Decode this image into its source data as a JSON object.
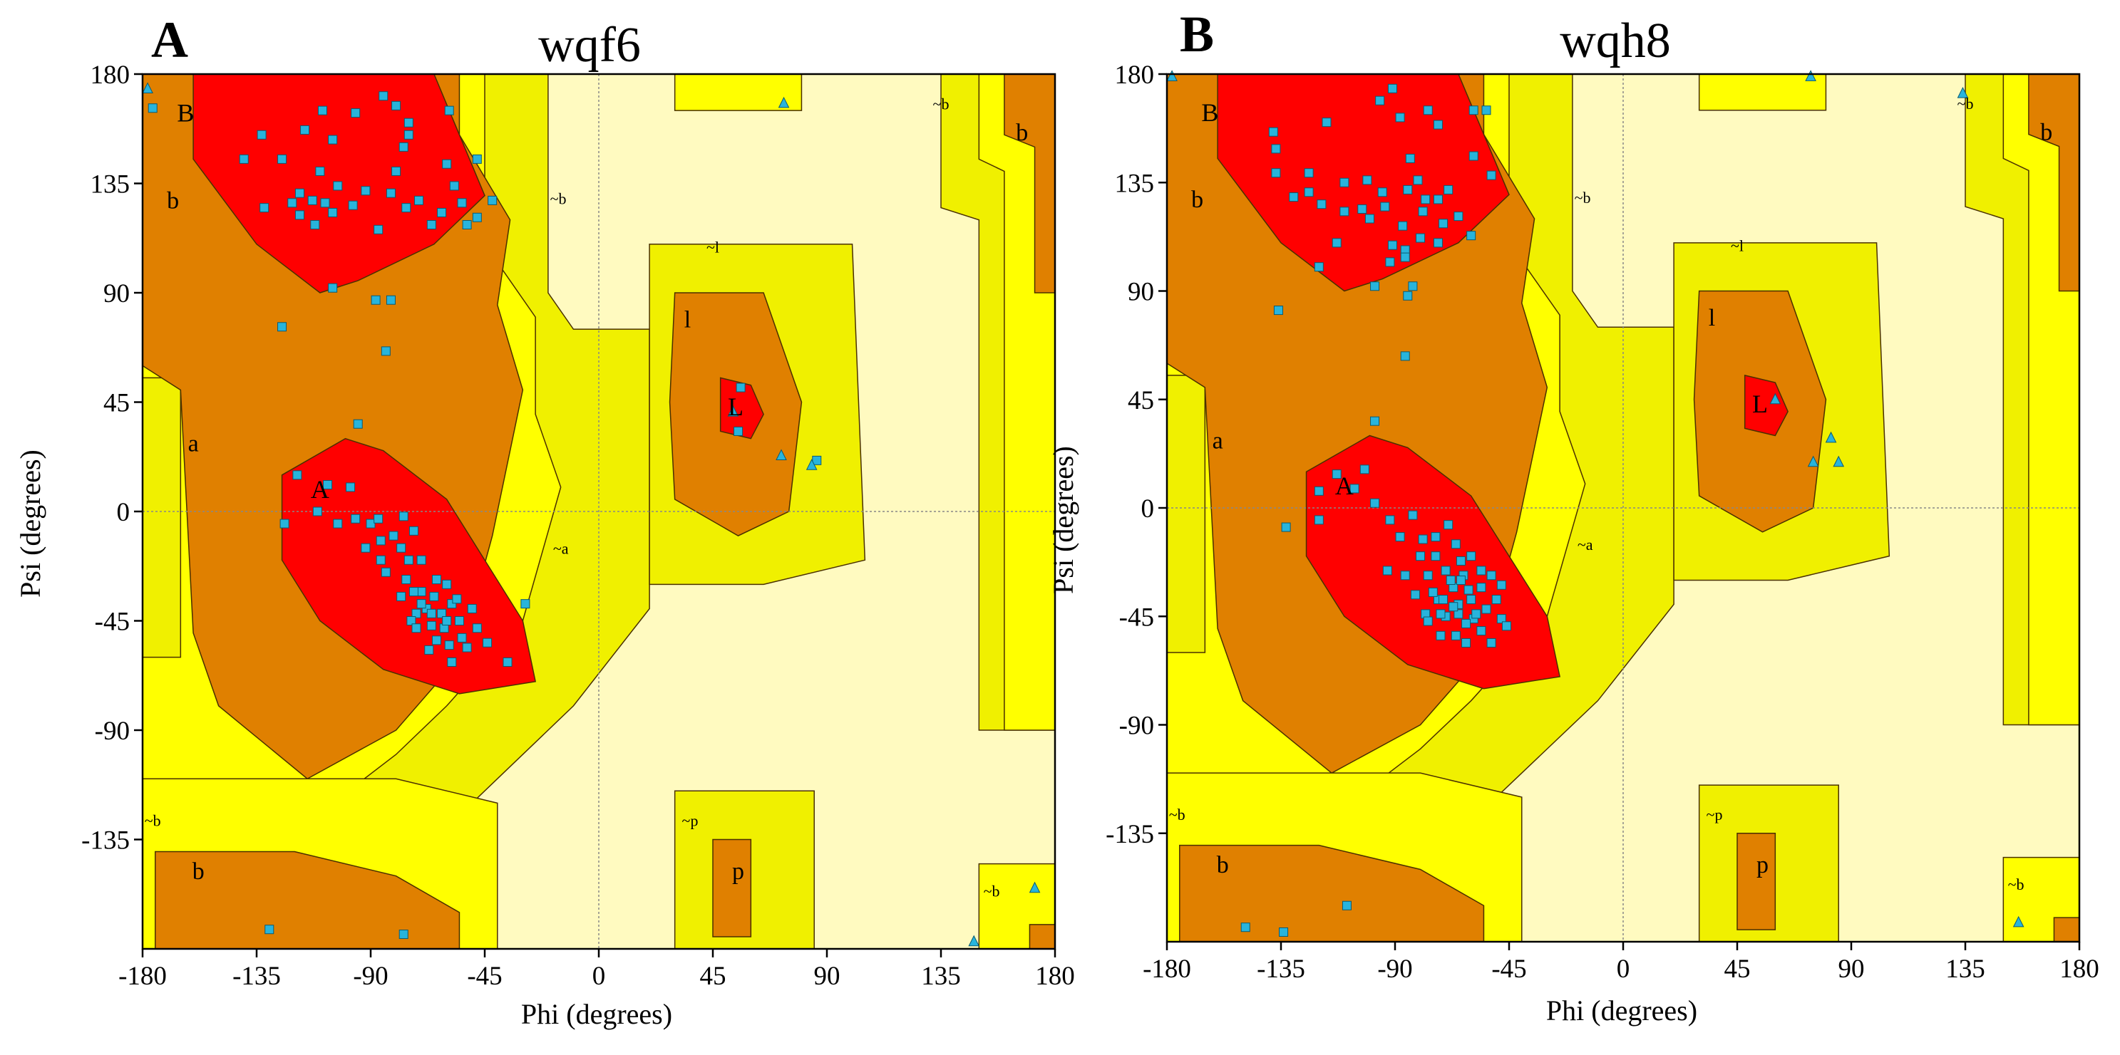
{
  "chart_data": [
    {
      "type": "scatter",
      "panel_label": "A",
      "title": "wqf6",
      "xlabel": "Phi (degrees)",
      "ylabel": "Psi (degrees)",
      "xlim": [
        -180,
        180
      ],
      "ylim": [
        -180,
        180
      ],
      "xticks": [
        -180,
        -135,
        -90,
        -45,
        0,
        45,
        90,
        135,
        180
      ],
      "yticks": [
        180,
        135,
        90,
        45,
        0,
        -45,
        -90,
        -135
      ],
      "region_labels": [
        {
          "text": "B",
          "phi": -163,
          "psi": 163
        },
        {
          "text": "b",
          "phi": -168,
          "psi": 127
        },
        {
          "text": "a",
          "phi": -160,
          "psi": 27
        },
        {
          "text": "A",
          "phi": -110,
          "psi": 8
        },
        {
          "text": "~b",
          "phi": -16,
          "psi": 128
        },
        {
          "text": "~a",
          "phi": -15,
          "psi": -16
        },
        {
          "text": "~l",
          "phi": 45,
          "psi": 108
        },
        {
          "text": "l",
          "phi": 35,
          "psi": 78
        },
        {
          "text": "L",
          "phi": 54,
          "psi": 42
        },
        {
          "text": "~b",
          "phi": 135,
          "psi": 167
        },
        {
          "text": "b",
          "phi": 167,
          "psi": 155
        },
        {
          "text": "~b",
          "phi": -176,
          "psi": -128
        },
        {
          "text": "b",
          "phi": -158,
          "psi": -149
        },
        {
          "text": "~p",
          "phi": 36,
          "psi": -128
        },
        {
          "text": "p",
          "phi": 55,
          "psi": -149
        },
        {
          "text": "~b",
          "phi": 155,
          "psi": -157
        }
      ],
      "glycine_points": [
        [
          -178,
          174
        ],
        [
          73,
          168
        ],
        [
          53,
          41
        ],
        [
          72,
          23
        ],
        [
          84,
          19
        ],
        [
          172,
          -155
        ],
        [
          148,
          -177
        ]
      ],
      "residue_points": [
        [
          -176,
          166
        ],
        [
          -109,
          165
        ],
        [
          -105,
          153
        ],
        [
          -85,
          171
        ],
        [
          -80,
          167
        ],
        [
          -96,
          164
        ],
        [
          -116,
          157
        ],
        [
          -133,
          155
        ],
        [
          -125,
          145
        ],
        [
          -110,
          140
        ],
        [
          -103,
          134
        ],
        [
          -118,
          131
        ],
        [
          -108,
          127
        ],
        [
          -92,
          132
        ],
        [
          -80,
          140
        ],
        [
          -71,
          128
        ],
        [
          -60,
          143
        ],
        [
          -57,
          134
        ],
        [
          -48,
          145
        ],
        [
          -54,
          127
        ],
        [
          -62,
          123
        ],
        [
          -66,
          118
        ],
        [
          -76,
          125
        ],
        [
          -97,
          126
        ],
        [
          -105,
          123
        ],
        [
          -112,
          118
        ],
        [
          -113,
          128
        ],
        [
          -118,
          122
        ],
        [
          -121,
          127
        ],
        [
          -87,
          116
        ],
        [
          -82,
          131
        ],
        [
          -77,
          150
        ],
        [
          -132,
          125
        ],
        [
          -140,
          145
        ],
        [
          -75,
          155
        ],
        [
          -48,
          121
        ],
        [
          -52,
          118
        ],
        [
          -42,
          128
        ],
        [
          -59,
          165
        ],
        [
          -75,
          160
        ],
        [
          -105,
          92
        ],
        [
          -88,
          87
        ],
        [
          -82,
          87
        ],
        [
          -125,
          76
        ],
        [
          -84,
          66
        ],
        [
          -95,
          36
        ],
        [
          -119,
          15
        ],
        [
          -107,
          11
        ],
        [
          -98,
          10
        ],
        [
          -111,
          0
        ],
        [
          -103,
          -5
        ],
        [
          -124,
          -5
        ],
        [
          -96,
          -3
        ],
        [
          -90,
          -5
        ],
        [
          -86,
          -12
        ],
        [
          -87,
          -3
        ],
        [
          -81,
          -10
        ],
        [
          -86,
          -20
        ],
        [
          -92,
          -15
        ],
        [
          -84,
          -25
        ],
        [
          -77,
          -2
        ],
        [
          -73,
          -8
        ],
        [
          -70,
          -20
        ],
        [
          -78,
          -15
        ],
        [
          -76,
          -28
        ],
        [
          -70,
          -33
        ],
        [
          -65,
          -35
        ],
        [
          -60,
          -30
        ],
        [
          -68,
          -40
        ],
        [
          -62,
          -42
        ],
        [
          -58,
          -38
        ],
        [
          -72,
          -42
        ],
        [
          -66,
          -47
        ],
        [
          -61,
          -48
        ],
        [
          -55,
          -45
        ],
        [
          -50,
          -40
        ],
        [
          -64,
          -53
        ],
        [
          -59,
          -55
        ],
        [
          -54,
          -52
        ],
        [
          -67,
          -57
        ],
        [
          -48,
          -48
        ],
        [
          -78,
          -35
        ],
        [
          -74,
          -45
        ],
        [
          -58,
          -62
        ],
        [
          -72,
          -48
        ],
        [
          -56,
          -36
        ],
        [
          -64,
          -28
        ],
        [
          -75,
          -20
        ],
        [
          -52,
          -56
        ],
        [
          -44,
          -54
        ],
        [
          -70,
          -38
        ],
        [
          -60,
          -45
        ],
        [
          -66,
          -42
        ],
        [
          -73,
          -33
        ],
        [
          -36,
          -62
        ],
        [
          -29,
          -38
        ],
        [
          56,
          51
        ],
        [
          55,
          33
        ],
        [
          86,
          21
        ],
        [
          -130,
          -172
        ],
        [
          -77,
          -174
        ]
      ]
    },
    {
      "type": "scatter",
      "panel_label": "B",
      "title": "wqh8",
      "xlabel": "Phi (degrees)",
      "ylabel": "Psi (degrees)",
      "xlim": [
        -180,
        180
      ],
      "ylim": [
        -180,
        180
      ],
      "xticks": [
        -180,
        -135,
        -90,
        -45,
        0,
        45,
        90,
        135,
        180
      ],
      "yticks": [
        180,
        135,
        90,
        45,
        0,
        -45,
        -90,
        -135
      ],
      "region_labels": [
        {
          "text": "B",
          "phi": -163,
          "psi": 163
        },
        {
          "text": "b",
          "phi": -168,
          "psi": 127
        },
        {
          "text": "a",
          "phi": -160,
          "psi": 27
        },
        {
          "text": "A",
          "phi": -110,
          "psi": 8
        },
        {
          "text": "~b",
          "phi": -16,
          "psi": 128
        },
        {
          "text": "~a",
          "phi": -15,
          "psi": -16
        },
        {
          "text": "~l",
          "phi": 45,
          "psi": 108
        },
        {
          "text": "l",
          "phi": 35,
          "psi": 78
        },
        {
          "text": "L",
          "phi": 54,
          "psi": 42
        },
        {
          "text": "~b",
          "phi": 135,
          "psi": 167
        },
        {
          "text": "b",
          "phi": 167,
          "psi": 155
        },
        {
          "text": "~b",
          "phi": -176,
          "psi": -128
        },
        {
          "text": "b",
          "phi": -158,
          "psi": -149
        },
        {
          "text": "~p",
          "phi": 36,
          "psi": -128
        },
        {
          "text": "p",
          "phi": 55,
          "psi": -149
        },
        {
          "text": "~b",
          "phi": 155,
          "psi": -157
        }
      ],
      "glycine_points": [
        [
          -178,
          179
        ],
        [
          74,
          179
        ],
        [
          134,
          172
        ],
        [
          60,
          45
        ],
        [
          82,
          29
        ],
        [
          75,
          19
        ],
        [
          85,
          19
        ],
        [
          156,
          -172
        ]
      ],
      "residue_points": [
        [
          -138,
          156
        ],
        [
          -117,
          160
        ],
        [
          -96,
          169
        ],
        [
          -91,
          174
        ],
        [
          -88,
          162
        ],
        [
          -77,
          165
        ],
        [
          -73,
          159
        ],
        [
          -54,
          165
        ],
        [
          -137,
          149
        ],
        [
          -124,
          139
        ],
        [
          -110,
          135
        ],
        [
          -101,
          136
        ],
        [
          -95,
          131
        ],
        [
          -84,
          145
        ],
        [
          -81,
          136
        ],
        [
          -73,
          128
        ],
        [
          -69,
          132
        ],
        [
          -59,
          146
        ],
        [
          -52,
          138
        ],
        [
          -60,
          113
        ],
        [
          -65,
          121
        ],
        [
          -71,
          118
        ],
        [
          -79,
          123
        ],
        [
          -87,
          117
        ],
        [
          -94,
          125
        ],
        [
          -110,
          123
        ],
        [
          -119,
          126
        ],
        [
          -124,
          131
        ],
        [
          -130,
          129
        ],
        [
          -137,
          139
        ],
        [
          -103,
          124
        ],
        [
          -91,
          109
        ],
        [
          -86,
          107
        ],
        [
          -80,
          112
        ],
        [
          -92,
          102
        ],
        [
          -78,
          128
        ],
        [
          -85,
          132
        ],
        [
          -113,
          110
        ],
        [
          -120,
          100
        ],
        [
          -98,
          92
        ],
        [
          -83,
          92
        ],
        [
          -85,
          88
        ],
        [
          -136,
          82
        ],
        [
          -86,
          63
        ],
        [
          -98,
          36
        ],
        [
          -120,
          7
        ],
        [
          -102,
          16
        ],
        [
          -113,
          14
        ],
        [
          -106,
          8
        ],
        [
          -98,
          2
        ],
        [
          -92,
          -5
        ],
        [
          -88,
          -12
        ],
        [
          -83,
          -3
        ],
        [
          -79,
          -13
        ],
        [
          -74,
          -20
        ],
        [
          -70,
          -26
        ],
        [
          -67,
          -33
        ],
        [
          -63,
          -28
        ],
        [
          -60,
          -38
        ],
        [
          -56,
          -33
        ],
        [
          -73,
          -38
        ],
        [
          -77,
          -28
        ],
        [
          -65,
          -44
        ],
        [
          -59,
          -46
        ],
        [
          -54,
          -42
        ],
        [
          -50,
          -38
        ],
        [
          -48,
          -46
        ],
        [
          -70,
          -45
        ],
        [
          -75,
          -35
        ],
        [
          -78,
          -44
        ],
        [
          -72,
          -53
        ],
        [
          -66,
          -53
        ],
        [
          -62,
          -56
        ],
        [
          -56,
          -51
        ],
        [
          -52,
          -56
        ],
        [
          -46,
          -49
        ],
        [
          -68,
          -30
        ],
        [
          -64,
          -22
        ],
        [
          -60,
          -20
        ],
        [
          -80,
          -20
        ],
        [
          -86,
          -28
        ],
        [
          -93,
          -26
        ],
        [
          -82,
          -36
        ],
        [
          -74,
          -12
        ],
        [
          -69,
          -7
        ],
        [
          -66,
          -15
        ],
        [
          -71,
          -38
        ],
        [
          -65,
          -40
        ],
        [
          -62,
          -48
        ],
        [
          -58,
          -44
        ],
        [
          -56,
          -26
        ],
        [
          -52,
          -28
        ],
        [
          -48,
          -32
        ],
        [
          -61,
          -34
        ],
        [
          -67,
          -41
        ],
        [
          -72,
          -44
        ],
        [
          -77,
          -47
        ],
        [
          -64,
          -30
        ],
        [
          -133,
          -8
        ],
        [
          -120,
          -5
        ],
        [
          -149,
          -174
        ],
        [
          -134,
          -176
        ],
        [
          -109,
          -165
        ],
        [
          -59,
          165
        ],
        [
          -100,
          120
        ],
        [
          -86,
          104
        ],
        [
          -73,
          110
        ]
      ]
    }
  ]
}
